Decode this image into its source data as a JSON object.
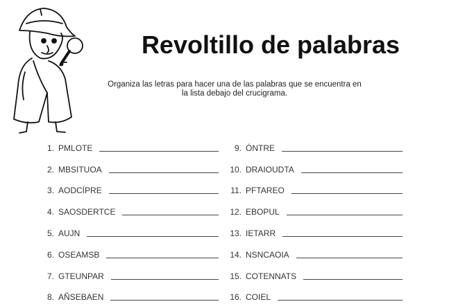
{
  "title": "Revoltillo de palabras",
  "instructions": "Organiza las letras para hacer una de las palabras que se encuentra en la lista debajo del crucigrama.",
  "illustration": "detective-with-magnifying-glass",
  "left_items": [
    {
      "num": "1.",
      "word": "PMLOTE"
    },
    {
      "num": "2.",
      "word": "MBSITUOA"
    },
    {
      "num": "3.",
      "word": "AODCÍPRE"
    },
    {
      "num": "4.",
      "word": "SAOSDERTCE"
    },
    {
      "num": "5.",
      "word": "AUJN"
    },
    {
      "num": "6.",
      "word": "OSEAMSB"
    },
    {
      "num": "7.",
      "word": "GTEUNPAR"
    },
    {
      "num": "8.",
      "word": "AÑSEBAEN"
    }
  ],
  "right_items": [
    {
      "num": "9.",
      "word": "ÓNTRE"
    },
    {
      "num": "10.",
      "word": "DRAIOUDTA"
    },
    {
      "num": "11.",
      "word": "PFTAREO"
    },
    {
      "num": "12.",
      "word": "EBOPUL"
    },
    {
      "num": "13.",
      "word": "IETARR"
    },
    {
      "num": "14.",
      "word": "NSNCAOIA"
    },
    {
      "num": "15.",
      "word": "COTENNATS"
    },
    {
      "num": "16.",
      "word": "COIEL"
    }
  ]
}
